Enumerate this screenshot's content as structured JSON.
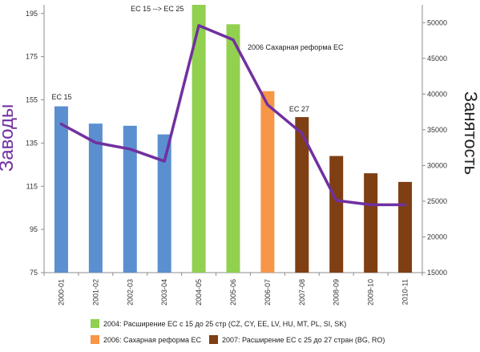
{
  "chart_data": {
    "type": "bar",
    "categories": [
      "2000-01",
      "2001-02",
      "2002-03",
      "2003-04",
      "2004-05",
      "2005-06",
      "2006-07",
      "2007-08",
      "2008-09",
      "2009-10",
      "2010-11"
    ],
    "series": [
      {
        "name": "Заводы",
        "kind": "bar",
        "axis": "left",
        "values": [
          152,
          144,
          143,
          139,
          199,
          190,
          159,
          147,
          129,
          121,
          117
        ],
        "colors": [
          "#5b8fd0",
          "#5b8fd0",
          "#5b8fd0",
          "#5b8fd0",
          "#92d050",
          "#92d050",
          "#f79646",
          "#7f3f12",
          "#7f3f12",
          "#7f3f12",
          "#7f3f12"
        ]
      },
      {
        "name": "Занятость",
        "kind": "line",
        "axis": "right",
        "color": "#7030a0",
        "values": [
          35800,
          33200,
          32300,
          30600,
          49600,
          47600,
          38500,
          34500,
          25100,
          24500,
          24500
        ]
      }
    ],
    "y_left": {
      "label": "Заводы",
      "min": 75,
      "max": 199,
      "ticks": [
        75,
        95,
        115,
        135,
        155,
        175,
        195
      ]
    },
    "y_right": {
      "label": "Занятость",
      "min": 15000,
      "max": 52500,
      "ticks": [
        15000,
        20000,
        25000,
        30000,
        35000,
        40000,
        45000,
        50000
      ]
    },
    "annotations": [
      {
        "text": "EC 15",
        "category_index": 0
      },
      {
        "text": "EC 15 --> EC 25",
        "category_index": 4
      },
      {
        "text": "2006 Сахарная реформа ЕС",
        "category_index": 5
      },
      {
        "text": "EC 27",
        "category_index": 7
      }
    ],
    "legend": [
      {
        "color": "#92d050",
        "text": "2004: Расширение ЕС с 15 до 25 стр (CZ, CY, EE, LV, HU, MT, PL, SI, SK)"
      },
      {
        "color": "#f79646",
        "text": "2006: Сахарная реформа ЕС"
      },
      {
        "color": "#7f3f12",
        "text": "2007: Расширение ЕС с 25 до 27 стран  (BG, RO)"
      }
    ],
    "legend_position": "bottom",
    "grid": false
  },
  "colors": {
    "axis_left_label": "#7030a0",
    "axis_right_label": "#222222"
  }
}
